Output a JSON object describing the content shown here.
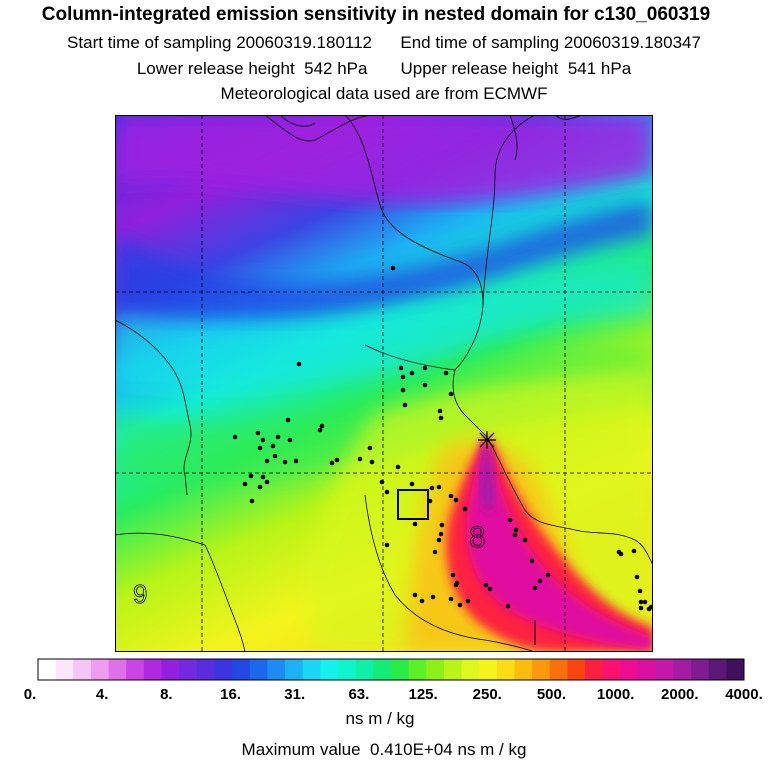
{
  "header": {
    "title": "Column-integrated emission sensitivity in nested domain for c130_060319",
    "start_label": "Start time of sampling",
    "start_value": "20060319.180112",
    "end_label": "End time of sampling",
    "end_value": "20060319.180347",
    "lower_label": "Lower release height",
    "lower_value": "542 hPa",
    "upper_label": "Upper release height",
    "upper_value": "541 hPa",
    "met_line": "Meteorological data used are from ECMWF"
  },
  "map": {
    "annotations": [
      "9",
      "8"
    ]
  },
  "legend": {
    "tick_labels": [
      "0.",
      "4.",
      "8.",
      "16.",
      "31.",
      "63.",
      "125.",
      "250.",
      "500.",
      "1000.",
      "2000.",
      "4000."
    ],
    "unit": "ns m / kg",
    "max_label": "Maximum value",
    "max_value": "0.410E+04 ns m / kg",
    "colors": [
      "#ffffff",
      "#fce6fc",
      "#f6c4f6",
      "#ee9cf0",
      "#e070ea",
      "#cc44e4",
      "#b028e0",
      "#9220dc",
      "#7428e0",
      "#5a2ce0",
      "#3c34e2",
      "#2448e4",
      "#1c68ec",
      "#1c8cf0",
      "#1cb0f4",
      "#1cd4f4",
      "#14f0ec",
      "#10f4cc",
      "#10f0a4",
      "#14ec78",
      "#28ec48",
      "#5cf028",
      "#8cf018",
      "#b8f418",
      "#dcf81c",
      "#f4f41c",
      "#fcdc14",
      "#fcbc0c",
      "#fc980c",
      "#fc700c",
      "#fc4410",
      "#fc2040",
      "#fc1070",
      "#f00c90",
      "#dc10a0",
      "#c418a8",
      "#a41ca4",
      "#801c90",
      "#5c1878",
      "#401060"
    ]
  }
}
